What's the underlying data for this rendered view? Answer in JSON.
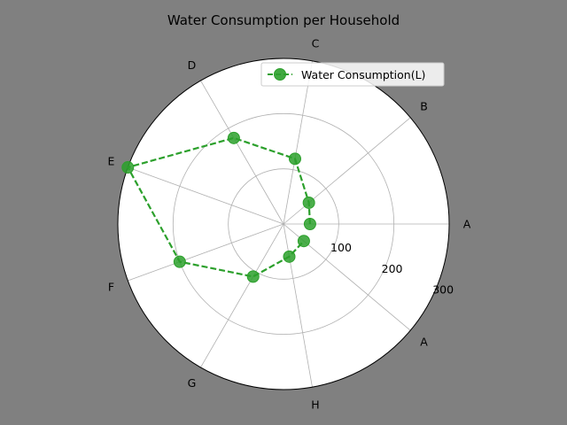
{
  "chart_data": {
    "type": "polar-line",
    "title": "Water Consumption per Household",
    "angular_labels": [
      "A",
      "B",
      "C",
      "D",
      "E",
      "F",
      "G",
      "H",
      "A"
    ],
    "radial_ticks": [
      100,
      200,
      300
    ],
    "r_max": 300,
    "grid": true,
    "legend_position": "top-right",
    "series": [
      {
        "name": "Water Consumption(L)",
        "categories": [
          "A",
          "B",
          "C",
          "D",
          "E",
          "F",
          "G",
          "H",
          "A"
        ],
        "values": [
          48,
          60,
          120,
          180,
          300,
          200,
          110,
          60,
          48
        ],
        "color": "#2ca02c",
        "line_style": "dashed",
        "marker": "circle"
      }
    ]
  },
  "colors": {
    "background": "#808080",
    "plot_area": "#ffffff",
    "grid": "#b0b0b0",
    "series": "#2ca02c"
  }
}
